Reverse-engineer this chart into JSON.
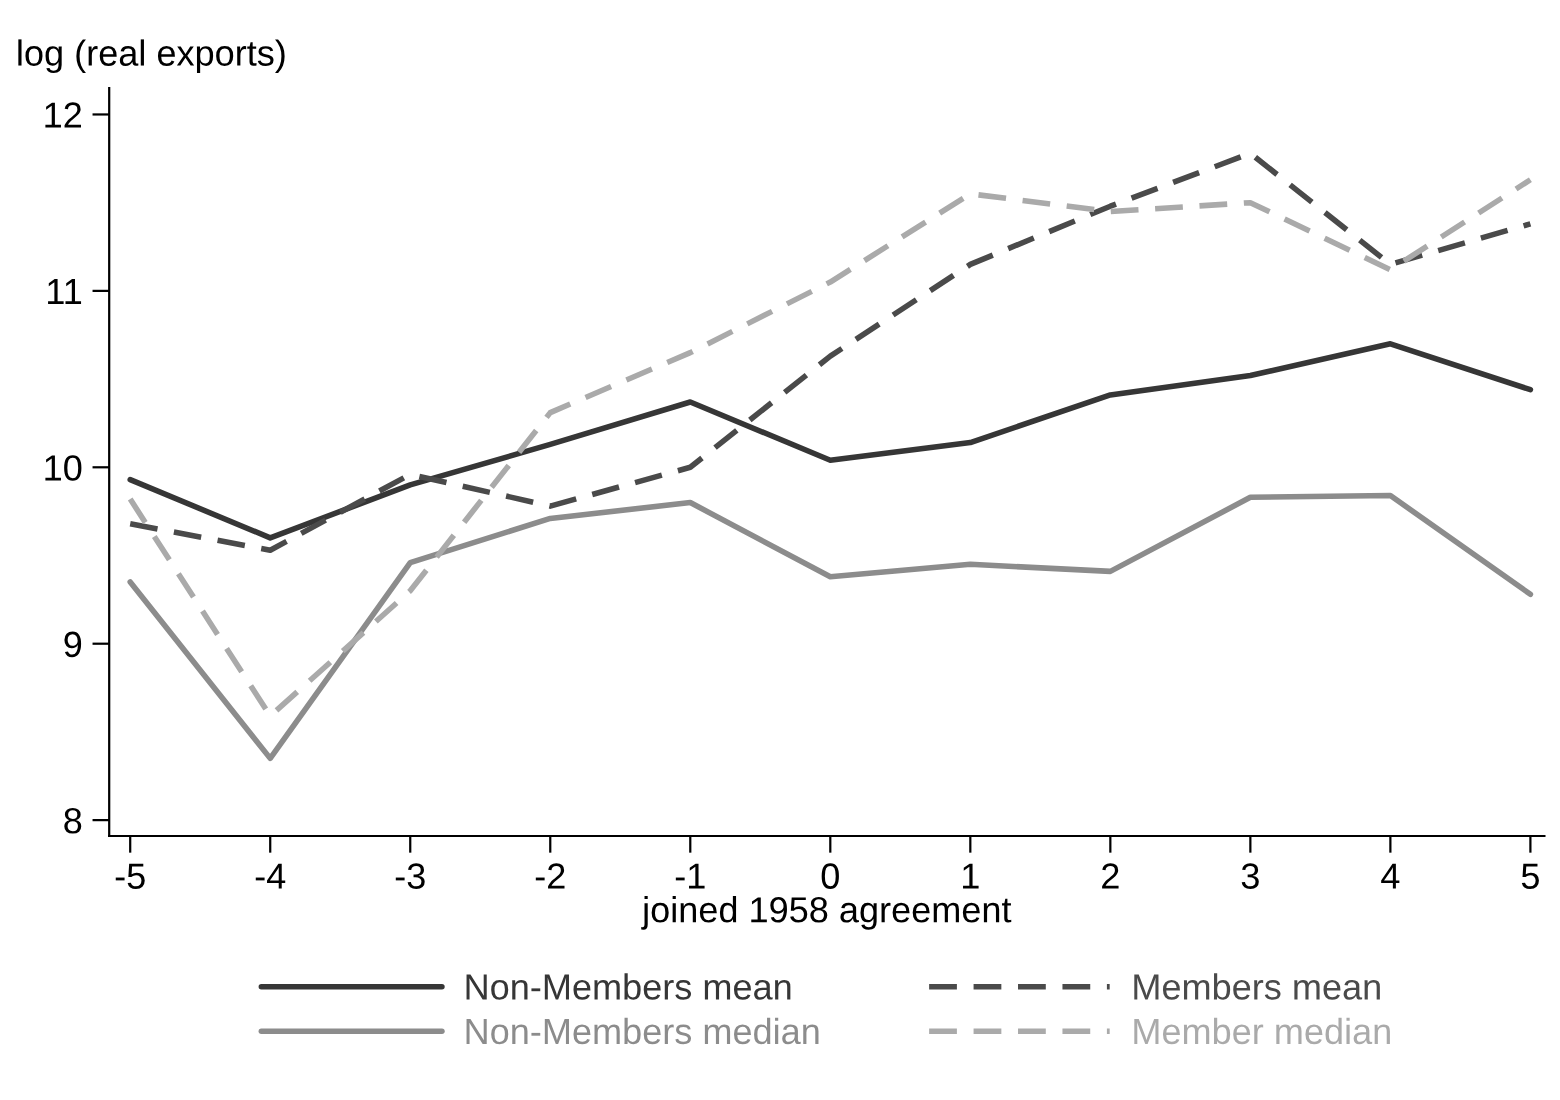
{
  "chart_data": {
    "type": "line",
    "xlabel": "joined 1958 agreement",
    "ylabel": "log (real exports)",
    "x": [
      -5,
      -4,
      -3,
      -2,
      -1,
      0,
      1,
      2,
      3,
      4,
      5
    ],
    "series": [
      {
        "name": "Non-Members mean",
        "color": "#363636",
        "line_style": "solid",
        "values": [
          9.93,
          9.6,
          9.9,
          10.13,
          10.37,
          10.04,
          10.14,
          10.41,
          10.52,
          10.7,
          10.44
        ]
      },
      {
        "name": "Members mean",
        "color": "#4a4a4a",
        "line_style": "dashed",
        "values": [
          9.68,
          9.53,
          9.96,
          9.78,
          10.0,
          10.63,
          11.15,
          11.48,
          11.78,
          11.15,
          11.38
        ]
      },
      {
        "name": "Non-Members median",
        "color": "#8c8c8c",
        "line_style": "solid",
        "values": [
          9.35,
          8.35,
          9.46,
          9.71,
          9.8,
          9.38,
          9.45,
          9.41,
          9.83,
          9.84,
          9.28
        ]
      },
      {
        "name": "Member median",
        "color": "#aaaaaa",
        "line_style": "dashed",
        "values": [
          9.82,
          8.59,
          9.3,
          10.31,
          10.65,
          11.05,
          11.55,
          11.45,
          11.5,
          11.12,
          11.63
        ]
      }
    ],
    "xlim": [
      -5.15,
      5.1
    ],
    "ylim": [
      7.91,
      12.15
    ],
    "xticks": [
      {
        "value": -5,
        "label": "-5"
      },
      {
        "value": -4,
        "label": "-4"
      },
      {
        "value": -3,
        "label": "-3"
      },
      {
        "value": -2,
        "label": "-2"
      },
      {
        "value": -1,
        "label": "-1"
      },
      0,
      1,
      2,
      3,
      4,
      5
    ],
    "yticks": [
      8,
      9,
      10,
      11,
      12
    ],
    "grid": false,
    "legend": "bottom",
    "marker": "none"
  }
}
